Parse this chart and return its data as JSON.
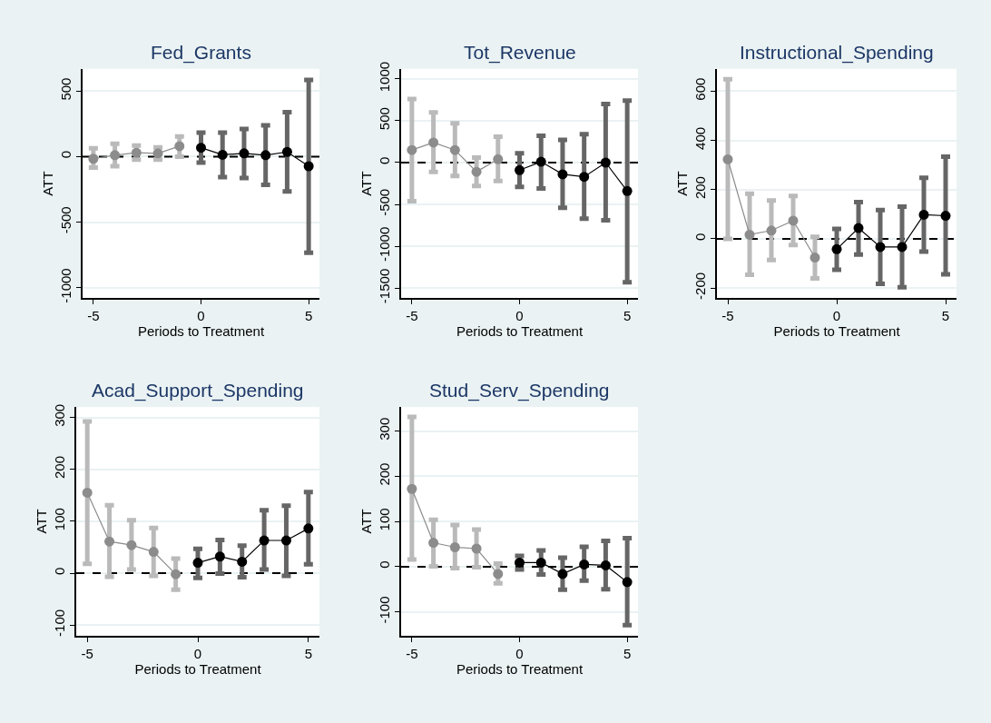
{
  "chart_data": [
    {
      "type": "line",
      "title": "Fed_Grants",
      "xlabel": "Periods to Treatment",
      "ylabel": "ATT",
      "xlim": [
        -5.5,
        5.5
      ],
      "xticks": [
        -5,
        0,
        5
      ],
      "ylim": [
        -1080,
        670
      ],
      "yticks": [
        -1000,
        -500,
        0,
        500
      ],
      "grid": "y",
      "marker": "circle",
      "ref_lines": [
        {
          "axis": "y",
          "value": 0,
          "line_style": "dashed",
          "color": "#000000"
        }
      ],
      "series": [
        {
          "color": "#8c8c8c",
          "x": [
            -5,
            -4,
            -3,
            -2,
            -1
          ],
          "values": [
            -16,
            11,
            30,
            25,
            80
          ],
          "errors": [
            [
              -84,
              64
            ],
            [
              -73,
              98
            ],
            [
              -23,
              84
            ],
            [
              -23,
              70
            ],
            [
              0,
              154
            ]
          ]
        },
        {
          "color": "#000000",
          "x": [
            0,
            1,
            2,
            3,
            4,
            5
          ],
          "values": [
            68,
            14,
            25,
            11,
            36,
            -73
          ],
          "errors": [
            [
              -45,
              184
            ],
            [
              -157,
              184
            ],
            [
              -163,
              211
            ],
            [
              -216,
              238
            ],
            [
              -266,
              340
            ],
            [
              -733,
              586
            ]
          ]
        }
      ]
    },
    {
      "type": "line",
      "title": "Tot_Revenue",
      "xlabel": "Periods to Treatment",
      "ylabel": "ATT",
      "xlim": [
        -5.5,
        5.5
      ],
      "xticks": [
        -5,
        0,
        5
      ],
      "ylim": [
        -1620,
        1120
      ],
      "yticks": [
        -1500,
        -1000,
        -500,
        0,
        500,
        1000
      ],
      "grid": "y",
      "marker": "circle",
      "ref_lines": [
        {
          "axis": "y",
          "value": 0,
          "line_style": "dashed",
          "color": "#000000"
        }
      ],
      "series": [
        {
          "color": "#8c8c8c",
          "x": [
            -5,
            -4,
            -3,
            -2,
            -1
          ],
          "values": [
            150,
            240,
            150,
            -110,
            40
          ],
          "errors": [
            [
              -460,
              760
            ],
            [
              -110,
              600
            ],
            [
              -160,
              470
            ],
            [
              -280,
              60
            ],
            [
              -220,
              310
            ]
          ]
        },
        {
          "color": "#000000",
          "x": [
            0,
            1,
            2,
            3,
            4,
            5
          ],
          "values": [
            -90,
            10,
            -140,
            -170,
            0,
            -340
          ],
          "errors": [
            [
              -290,
              110
            ],
            [
              -310,
              320
            ],
            [
              -540,
              270
            ],
            [
              -670,
              340
            ],
            [
              -690,
              700
            ],
            [
              -1430,
              740
            ]
          ]
        }
      ]
    },
    {
      "type": "line",
      "title": "Instructional_Spending",
      "xlabel": "Periods to Treatment",
      "ylabel": "ATT",
      "xlim": [
        -5.5,
        5.5
      ],
      "xticks": [
        -5,
        0,
        5
      ],
      "ylim": [
        -241,
        691
      ],
      "yticks": [
        -200,
        0,
        200,
        400,
        600
      ],
      "grid": "y",
      "marker": "circle",
      "ref_lines": [
        {
          "axis": "y",
          "value": 0,
          "line_style": "dashed",
          "color": "#000000"
        }
      ],
      "series": [
        {
          "color": "#8c8c8c",
          "x": [
            -5,
            -4,
            -3,
            -2,
            -1
          ],
          "values": [
            323,
            17,
            34,
            74,
            -76
          ],
          "errors": [
            [
              0,
              649
            ],
            [
              -146,
              184
            ],
            [
              -86,
              156
            ],
            [
              -25,
              174
            ],
            [
              -161,
              8
            ]
          ]
        },
        {
          "color": "#000000",
          "x": [
            0,
            1,
            2,
            3,
            4,
            5
          ],
          "values": [
            -42,
            44,
            -33,
            -33,
            98,
            94
          ],
          "errors": [
            [
              -126,
              41
            ],
            [
              -64,
              149
            ],
            [
              -183,
              117
            ],
            [
              -197,
              131
            ],
            [
              -52,
              248
            ],
            [
              -144,
              334
            ]
          ]
        }
      ]
    },
    {
      "type": "line",
      "title": "Acad_Support_Spending",
      "xlabel": "Periods to Treatment",
      "ylabel": "ATT",
      "xlim": [
        -5.5,
        5.5
      ],
      "xticks": [
        -5,
        0,
        5
      ],
      "ylim": [
        -120,
        320
      ],
      "yticks": [
        -100,
        0,
        100,
        200,
        300
      ],
      "grid": "y",
      "marker": "circle",
      "ref_lines": [
        {
          "axis": "y",
          "value": 0,
          "line_style": "dashed",
          "color": "#000000"
        }
      ],
      "series": [
        {
          "color": "#8c8c8c",
          "x": [
            -5,
            -4,
            -3,
            -2,
            -1
          ],
          "values": [
            155,
            61,
            54,
            41,
            -2
          ],
          "errors": [
            [
              18,
              292
            ],
            [
              -7,
              131
            ],
            [
              7,
              102
            ],
            [
              -5,
              87
            ],
            [
              -32,
              28
            ]
          ]
        },
        {
          "color": "#000000",
          "x": [
            0,
            1,
            2,
            3,
            4,
            5
          ],
          "values": [
            20,
            32,
            22,
            63,
            63,
            86
          ],
          "errors": [
            [
              -9,
              47
            ],
            [
              -1,
              64
            ],
            [
              -8,
              53
            ],
            [
              7,
              121
            ],
            [
              -5,
              130
            ],
            [
              17,
              156
            ]
          ]
        }
      ]
    },
    {
      "type": "line",
      "title": "Stud_Serv_Spending",
      "xlabel": "Periods to Treatment",
      "ylabel": "ATT",
      "xlim": [
        -5.5,
        5.5
      ],
      "xticks": [
        -5,
        0,
        5
      ],
      "ylim": [
        -152,
        353
      ],
      "yticks": [
        -100,
        0,
        100,
        200,
        300
      ],
      "grid": "y",
      "marker": "circle",
      "ref_lines": [
        {
          "axis": "y",
          "value": 0,
          "line_style": "dashed",
          "color": "#000000"
        }
      ],
      "series": [
        {
          "color": "#8c8c8c",
          "x": [
            -5,
            -4,
            -3,
            -2,
            -1
          ],
          "values": [
            172,
            53,
            43,
            40,
            -16
          ],
          "errors": [
            [
              16,
              331
            ],
            [
              1,
              104
            ],
            [
              -3,
              92
            ],
            [
              -1,
              82
            ],
            [
              -37,
              7
            ]
          ]
        },
        {
          "color": "#000000",
          "x": [
            0,
            1,
            2,
            3,
            4,
            5
          ],
          "values": [
            9,
            9,
            -16,
            5,
            3,
            -34
          ],
          "errors": [
            [
              -6,
              24
            ],
            [
              -17,
              36
            ],
            [
              -51,
              20
            ],
            [
              -31,
              44
            ],
            [
              -50,
              57
            ],
            [
              -129,
              63
            ]
          ]
        }
      ]
    }
  ]
}
